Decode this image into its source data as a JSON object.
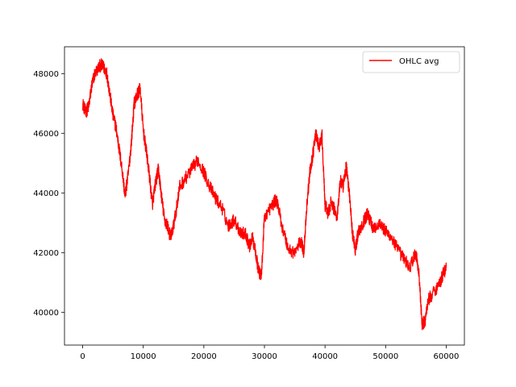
{
  "chart_data": {
    "type": "line",
    "title": "",
    "xlabel": "",
    "ylabel": "",
    "xlim": [
      -3000,
      63000
    ],
    "ylim": [
      38900,
      48900
    ],
    "grid": false,
    "legend_position": "top-right",
    "x_ticks": [
      0,
      10000,
      20000,
      30000,
      40000,
      50000,
      60000
    ],
    "x_tick_labels": [
      "0",
      "10000",
      "20000",
      "30000",
      "40000",
      "50000",
      "60000"
    ],
    "y_ticks": [
      40000,
      42000,
      44000,
      46000,
      48000
    ],
    "y_tick_labels": [
      "40000",
      "42000",
      "44000",
      "46000",
      "48000"
    ],
    "series": [
      {
        "name": "OHLC avg",
        "color": "#ff0000",
        "x": [
          0,
          500,
          1000,
          1500,
          2000,
          3000,
          3500,
          4000,
          4500,
          5000,
          5500,
          6000,
          6500,
          7000,
          7500,
          8000,
          8500,
          9000,
          9500,
          10000,
          10500,
          11000,
          11500,
          12000,
          12500,
          13000,
          13500,
          14000,
          14500,
          15000,
          15500,
          16000,
          17000,
          18000,
          19000,
          20000,
          21000,
          22000,
          23000,
          24000,
          25000,
          26000,
          27000,
          27500,
          28000,
          28500,
          29000,
          29500,
          30000,
          31000,
          32000,
          33000,
          34000,
          35000,
          36000,
          36500,
          37000,
          37500,
          38000,
          38500,
          39000,
          39500,
          40000,
          40500,
          41000,
          42000,
          42500,
          43000,
          43500,
          44000,
          44500,
          45000,
          45500,
          46000,
          47000,
          48000,
          49000,
          50000,
          51000,
          52000,
          53000,
          54000,
          55000,
          55500,
          56000,
          56500,
          57000,
          58000,
          59000,
          59500,
          60000
        ],
        "values": [
          47000,
          46700,
          46900,
          47600,
          48000,
          48300,
          48200,
          48000,
          47300,
          46600,
          46200,
          45500,
          44800,
          43900,
          44600,
          45600,
          47000,
          47300,
          47500,
          46100,
          45400,
          44600,
          43600,
          44300,
          44800,
          43900,
          43100,
          42900,
          42500,
          42900,
          43500,
          44200,
          44500,
          44800,
          45100,
          44700,
          44200,
          43800,
          43500,
          42900,
          43100,
          42700,
          42600,
          42200,
          42500,
          42100,
          41400,
          41200,
          43200,
          43500,
          43800,
          42800,
          42100,
          42000,
          42400,
          42000,
          43600,
          44700,
          45300,
          46000,
          45500,
          45900,
          43600,
          43300,
          43700,
          43200,
          44400,
          44200,
          44900,
          44000,
          42700,
          42100,
          42700,
          42900,
          43300,
          42800,
          43000,
          42700,
          42500,
          42100,
          41800,
          41500,
          42000,
          41300,
          39600,
          39700,
          40400,
          40700,
          41000,
          41300,
          41500
        ]
      }
    ]
  }
}
